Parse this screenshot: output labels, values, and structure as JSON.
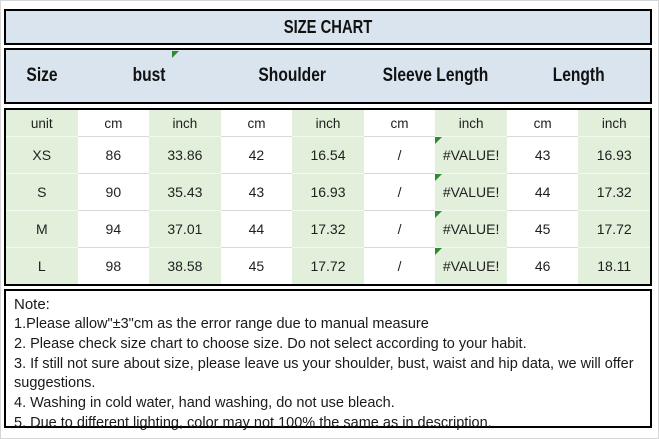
{
  "title": "SIZE CHART",
  "table": {
    "headers": [
      {
        "label": "Size"
      },
      {
        "label": "bust"
      },
      {
        "label": "Shoulder"
      },
      {
        "label": "Sleeve Length"
      },
      {
        "label": "Length"
      }
    ],
    "unit_row": [
      "unit",
      "cm",
      "inch",
      "cm",
      "inch",
      "cm",
      "inch",
      "cm",
      "inch"
    ],
    "rows": [
      {
        "size": "XS",
        "cells": [
          "86",
          "33.86",
          "42",
          "16.54",
          "/",
          "#VALUE!",
          "43",
          "16.93"
        ]
      },
      {
        "size": "S",
        "cells": [
          "90",
          "35.43",
          "43",
          "16.93",
          "/",
          "#VALUE!",
          "44",
          "17.32"
        ]
      },
      {
        "size": "M",
        "cells": [
          "94",
          "37.01",
          "44",
          "17.32",
          "/",
          "#VALUE!",
          "45",
          "17.72"
        ]
      },
      {
        "size": "L",
        "cells": [
          "98",
          "38.58",
          "45",
          "17.72",
          "/",
          "#VALUE!",
          "46",
          "18.11"
        ]
      }
    ]
  },
  "notes": {
    "label": "Note:",
    "items": [
      "1.Please allow\"±3\"cm as the error range due to manual measure",
      "2. Please check size chart to choose size. Do not select according to your habit.",
      "3. If still not sure about size, please leave us your shoulder, bust, waist and hip data, we will offer suggestions.",
      "4. Washing in cold water, hand washing, do not use bleach.",
      "5. Due to different lighting, color may not 100% the same as in description."
    ]
  },
  "colors": {
    "header_blue": "#d9e4ee",
    "cell_green": "#e2efda",
    "cell_white": "#ffffff",
    "border": "#000000",
    "error_indicator_green": "#2e8b2e"
  },
  "icons": {
    "error_indicator": "excel-error-triangle"
  }
}
